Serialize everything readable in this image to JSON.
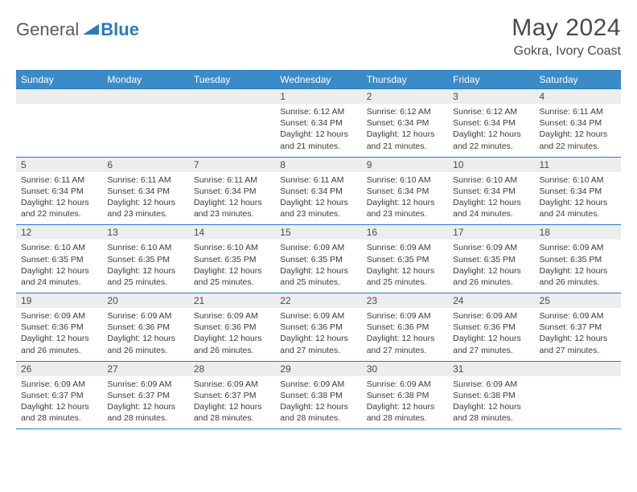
{
  "logo": {
    "text1": "General",
    "text2": "Blue"
  },
  "title": "May 2024",
  "location": "Gokra, Ivory Coast",
  "colors": {
    "header_bg": "#3b8bc9",
    "border": "#2b7bbf",
    "daynum_bg": "#eceded",
    "text": "#4a4a4a",
    "detail_text": "#3a3a3a"
  },
  "weekdays": [
    "Sunday",
    "Monday",
    "Tuesday",
    "Wednesday",
    "Thursday",
    "Friday",
    "Saturday"
  ],
  "weeks": [
    [
      null,
      null,
      null,
      {
        "n": "1",
        "sr": "6:12 AM",
        "ss": "6:34 PM",
        "dl": "12 hours and 21 minutes."
      },
      {
        "n": "2",
        "sr": "6:12 AM",
        "ss": "6:34 PM",
        "dl": "12 hours and 21 minutes."
      },
      {
        "n": "3",
        "sr": "6:12 AM",
        "ss": "6:34 PM",
        "dl": "12 hours and 22 minutes."
      },
      {
        "n": "4",
        "sr": "6:11 AM",
        "ss": "6:34 PM",
        "dl": "12 hours and 22 minutes."
      }
    ],
    [
      {
        "n": "5",
        "sr": "6:11 AM",
        "ss": "6:34 PM",
        "dl": "12 hours and 22 minutes."
      },
      {
        "n": "6",
        "sr": "6:11 AM",
        "ss": "6:34 PM",
        "dl": "12 hours and 23 minutes."
      },
      {
        "n": "7",
        "sr": "6:11 AM",
        "ss": "6:34 PM",
        "dl": "12 hours and 23 minutes."
      },
      {
        "n": "8",
        "sr": "6:11 AM",
        "ss": "6:34 PM",
        "dl": "12 hours and 23 minutes."
      },
      {
        "n": "9",
        "sr": "6:10 AM",
        "ss": "6:34 PM",
        "dl": "12 hours and 23 minutes."
      },
      {
        "n": "10",
        "sr": "6:10 AM",
        "ss": "6:34 PM",
        "dl": "12 hours and 24 minutes."
      },
      {
        "n": "11",
        "sr": "6:10 AM",
        "ss": "6:34 PM",
        "dl": "12 hours and 24 minutes."
      }
    ],
    [
      {
        "n": "12",
        "sr": "6:10 AM",
        "ss": "6:35 PM",
        "dl": "12 hours and 24 minutes."
      },
      {
        "n": "13",
        "sr": "6:10 AM",
        "ss": "6:35 PM",
        "dl": "12 hours and 25 minutes."
      },
      {
        "n": "14",
        "sr": "6:10 AM",
        "ss": "6:35 PM",
        "dl": "12 hours and 25 minutes."
      },
      {
        "n": "15",
        "sr": "6:09 AM",
        "ss": "6:35 PM",
        "dl": "12 hours and 25 minutes."
      },
      {
        "n": "16",
        "sr": "6:09 AM",
        "ss": "6:35 PM",
        "dl": "12 hours and 25 minutes."
      },
      {
        "n": "17",
        "sr": "6:09 AM",
        "ss": "6:35 PM",
        "dl": "12 hours and 26 minutes."
      },
      {
        "n": "18",
        "sr": "6:09 AM",
        "ss": "6:35 PM",
        "dl": "12 hours and 26 minutes."
      }
    ],
    [
      {
        "n": "19",
        "sr": "6:09 AM",
        "ss": "6:36 PM",
        "dl": "12 hours and 26 minutes."
      },
      {
        "n": "20",
        "sr": "6:09 AM",
        "ss": "6:36 PM",
        "dl": "12 hours and 26 minutes."
      },
      {
        "n": "21",
        "sr": "6:09 AM",
        "ss": "6:36 PM",
        "dl": "12 hours and 26 minutes."
      },
      {
        "n": "22",
        "sr": "6:09 AM",
        "ss": "6:36 PM",
        "dl": "12 hours and 27 minutes."
      },
      {
        "n": "23",
        "sr": "6:09 AM",
        "ss": "6:36 PM",
        "dl": "12 hours and 27 minutes."
      },
      {
        "n": "24",
        "sr": "6:09 AM",
        "ss": "6:36 PM",
        "dl": "12 hours and 27 minutes."
      },
      {
        "n": "25",
        "sr": "6:09 AM",
        "ss": "6:37 PM",
        "dl": "12 hours and 27 minutes."
      }
    ],
    [
      {
        "n": "26",
        "sr": "6:09 AM",
        "ss": "6:37 PM",
        "dl": "12 hours and 28 minutes."
      },
      {
        "n": "27",
        "sr": "6:09 AM",
        "ss": "6:37 PM",
        "dl": "12 hours and 28 minutes."
      },
      {
        "n": "28",
        "sr": "6:09 AM",
        "ss": "6:37 PM",
        "dl": "12 hours and 28 minutes."
      },
      {
        "n": "29",
        "sr": "6:09 AM",
        "ss": "6:38 PM",
        "dl": "12 hours and 28 minutes."
      },
      {
        "n": "30",
        "sr": "6:09 AM",
        "ss": "6:38 PM",
        "dl": "12 hours and 28 minutes."
      },
      {
        "n": "31",
        "sr": "6:09 AM",
        "ss": "6:38 PM",
        "dl": "12 hours and 28 minutes."
      },
      null
    ]
  ],
  "labels": {
    "sunrise": "Sunrise:",
    "sunset": "Sunset:",
    "daylight": "Daylight:"
  }
}
